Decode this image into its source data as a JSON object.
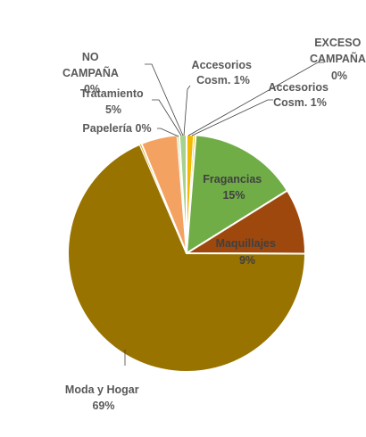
{
  "chart_data": {
    "type": "pie",
    "title": "",
    "slices": [
      {
        "name": "Accesorios Cosm.",
        "value": 1,
        "pct_label": "1%",
        "color": "#F5B800"
      },
      {
        "name": "EXCESO CAMPAÑA",
        "value": 0,
        "pct_label": "0%",
        "color": "#F5B800"
      },
      {
        "name": "Fragancias",
        "value": 15,
        "pct_label": "15%",
        "color": "#70AD47"
      },
      {
        "name": "Maquillajes",
        "value": 9,
        "pct_label": "9%",
        "color": "#9E480E"
      },
      {
        "name": "Moda y Hogar",
        "value": 69,
        "pct_label": "69%",
        "color": "#997300"
      },
      {
        "name": "Papelería",
        "value": 0,
        "pct_label": "0%",
        "color": "#D6A100"
      },
      {
        "name": "Tratamiento",
        "value": 5,
        "pct_label": "5%",
        "color": "#F4A261"
      },
      {
        "name": "NO CAMPAÑA",
        "value": 0,
        "pct_label": "0%",
        "color": "#A9D18E"
      },
      {
        "name": "Accesorios Cosm.",
        "value": 1,
        "pct_label": "1%",
        "color": "#A9D18E"
      }
    ],
    "labels": {
      "acc_top": [
        "Accesorios",
        "Cosm. 1%"
      ],
      "exceso": [
        "EXCESO",
        "CAMPAÑA",
        "0%"
      ],
      "acc_right": [
        "Accesorios",
        "Cosm. 1%"
      ],
      "fragancias": [
        "Fragancias",
        "15%"
      ],
      "maquillajes": [
        "Maquillajes",
        "9%"
      ],
      "moda": [
        "Moda y Hogar",
        "69%"
      ],
      "papeleria": [
        "Papelería 0%"
      ],
      "tratamiento": [
        "Tratamiento",
        "5%"
      ],
      "no_campana": [
        "NO",
        "CAMPAÑA",
        "0%"
      ]
    },
    "legend": "none"
  }
}
